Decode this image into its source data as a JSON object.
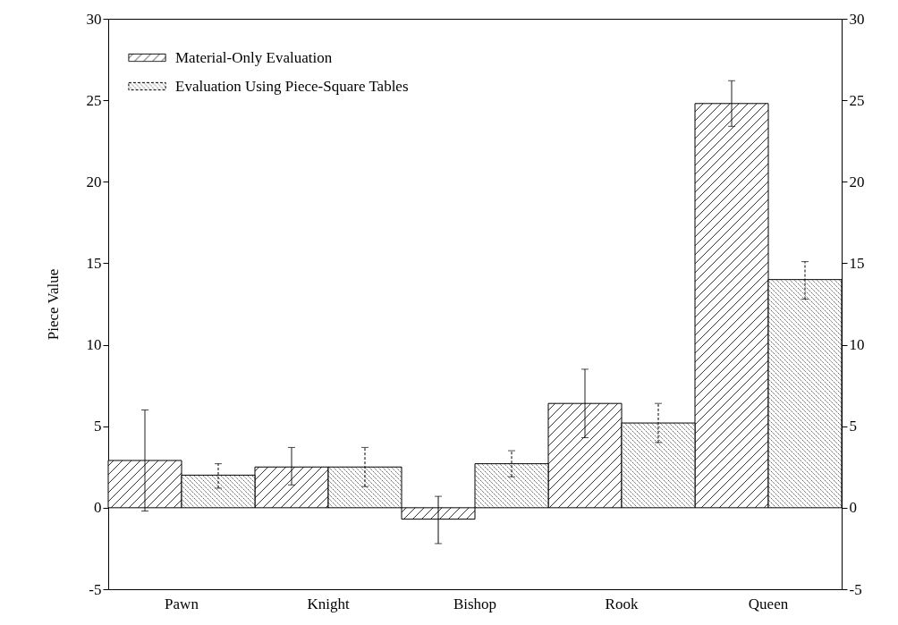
{
  "chart_data": {
    "type": "bar",
    "ylabel": "Piece Value",
    "categories": [
      "Pawn",
      "Knight",
      "Bishop",
      "Rook",
      "Queen"
    ],
    "series": [
      {
        "name": "Material-Only Evaluation",
        "values": [
          2.9,
          2.5,
          -0.7,
          6.4,
          24.8
        ],
        "errors": [
          [
            -0.2,
            6.0
          ],
          [
            1.4,
            3.7
          ],
          [
            -2.2,
            0.7
          ],
          [
            4.3,
            8.5
          ],
          [
            23.4,
            26.2
          ]
        ],
        "line_style": "solid"
      },
      {
        "name": "Evaluation Using Piece-Square Tables",
        "values": [
          2.0,
          2.5,
          2.7,
          5.2,
          14.0
        ],
        "errors": [
          [
            1.2,
            2.7
          ],
          [
            1.3,
            3.7
          ],
          [
            1.9,
            3.5
          ],
          [
            4.0,
            6.4
          ],
          [
            12.8,
            15.1
          ]
        ],
        "line_style": "dashed"
      }
    ],
    "ylim": [
      -5,
      30
    ],
    "yticks": [
      -5,
      0,
      5,
      10,
      15,
      20,
      25,
      30
    ],
    "y2lim": [
      -5,
      30
    ],
    "y2ticks": [
      -5,
      0,
      5,
      10,
      15,
      20,
      25,
      30
    ],
    "legend": "top left"
  }
}
